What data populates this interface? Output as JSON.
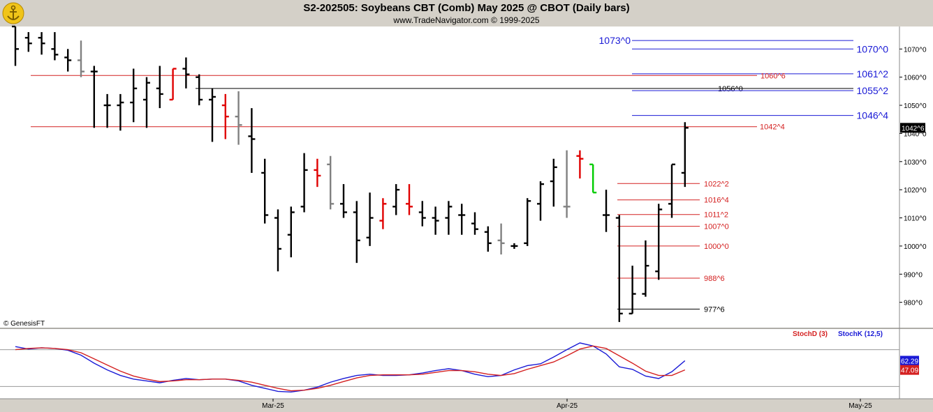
{
  "header": {
    "title": "S2-202505:  Soybeans CBT (Comb) May 2025 @ CBOT  (Daily bars)",
    "subtitle": "www.TradeNavigator.com © 1999-2025"
  },
  "watermark": "© GenesisFT",
  "colors": {
    "bar_default": "#000000",
    "bar_red": "#e00000",
    "bar_gray": "#808080",
    "bar_green": "#00cc00",
    "blue_level": "#1a1ad6",
    "red_level": "#d42020",
    "stoch_d": "#d42020",
    "stoch_k": "#1a1ad6"
  },
  "chart_data": [
    {
      "type": "ohlc",
      "title": "Soybeans CBT (Comb) May 2025 @ CBOT (Daily bars)",
      "y_axis_side": "right",
      "ylim": [
        971,
        1078
      ],
      "y_ticks": [
        "1070^0",
        "1060^0",
        "1050^0",
        "1040^0",
        "1030^0",
        "1020^0",
        "1010^0",
        "1000^0",
        "990^0",
        "980^0"
      ],
      "x_ticks": [
        "Mar-25",
        "Apr-25",
        "May-25"
      ],
      "last_price_label": "1042^6",
      "bars": [
        {
          "h": 1078,
          "l": 1064,
          "o": 1078,
          "c": 1070,
          "color": "black"
        },
        {
          "h": 1076,
          "l": 1069,
          "o": 1074,
          "c": 1072,
          "color": "black"
        },
        {
          "h": 1076,
          "l": 1068,
          "o": 1074,
          "c": 1072,
          "color": "black"
        },
        {
          "h": 1076,
          "l": 1066,
          "o": 1070,
          "c": 1068,
          "color": "black"
        },
        {
          "h": 1070,
          "l": 1062,
          "o": 1067,
          "c": 1066,
          "color": "black"
        },
        {
          "h": 1073,
          "l": 1060,
          "o": 1066,
          "c": 1062,
          "color": "gray"
        },
        {
          "h": 1064,
          "l": 1042,
          "o": 1062,
          "c": 1062,
          "color": "black"
        },
        {
          "h": 1054,
          "l": 1042,
          "o": 1050,
          "c": 1050,
          "color": "black"
        },
        {
          "h": 1054,
          "l": 1041,
          "o": 1050,
          "c": 1051,
          "color": "black"
        },
        {
          "h": 1063,
          "l": 1044,
          "o": 1051,
          "c": 1056,
          "color": "black"
        },
        {
          "h": 1060,
          "l": 1042,
          "o": 1052,
          "c": 1058,
          "color": "black"
        },
        {
          "h": 1064,
          "l": 1049,
          "o": 1056,
          "c": 1054,
          "color": "black"
        },
        {
          "h": 1063,
          "l": 1052,
          "o": 1052,
          "c": 1063,
          "color": "red"
        },
        {
          "h": 1067,
          "l": 1056,
          "o": 1063,
          "c": 1061,
          "color": "black"
        },
        {
          "h": 1061,
          "l": 1050,
          "o": 1060,
          "c": 1052,
          "color": "black"
        },
        {
          "h": 1056,
          "l": 1037,
          "o": 1052,
          "c": 1053,
          "color": "black"
        },
        {
          "h": 1054,
          "l": 1038,
          "o": 1050,
          "c": 1046,
          "color": "red"
        },
        {
          "h": 1055,
          "l": 1036,
          "o": 1046,
          "c": 1043,
          "color": "gray"
        },
        {
          "h": 1049,
          "l": 1026,
          "o": 1039,
          "c": 1038,
          "color": "black"
        },
        {
          "h": 1031,
          "l": 1008,
          "o": 1026,
          "c": 1011,
          "color": "black"
        },
        {
          "h": 1013,
          "l": 991,
          "o": 1010,
          "c": 999,
          "color": "black"
        },
        {
          "h": 1014,
          "l": 996,
          "o": 1004,
          "c": 1012,
          "color": "black"
        },
        {
          "h": 1033,
          "l": 1012,
          "o": 1014,
          "c": 1027,
          "color": "black"
        },
        {
          "h": 1031,
          "l": 1021,
          "o": 1027,
          "c": 1025,
          "color": "red"
        },
        {
          "h": 1032,
          "l": 1013,
          "o": 1029,
          "c": 1015,
          "color": "gray"
        },
        {
          "h": 1022,
          "l": 1010,
          "o": 1015,
          "c": 1012,
          "color": "black"
        },
        {
          "h": 1016,
          "l": 994,
          "o": 1012,
          "c": 1002,
          "color": "black"
        },
        {
          "h": 1019,
          "l": 1000,
          "o": 1003,
          "c": 1010,
          "color": "black"
        },
        {
          "h": 1017,
          "l": 1006,
          "o": 1009,
          "c": 1015,
          "color": "red"
        },
        {
          "h": 1022,
          "l": 1011,
          "o": 1014,
          "c": 1020,
          "color": "black"
        },
        {
          "h": 1022,
          "l": 1011,
          "o": 1015,
          "c": 1014,
          "color": "red"
        },
        {
          "h": 1016,
          "l": 1007,
          "o": 1012,
          "c": 1010,
          "color": "black"
        },
        {
          "h": 1014,
          "l": 1004,
          "o": 1010,
          "c": 1009,
          "color": "black"
        },
        {
          "h": 1016,
          "l": 1004,
          "o": 1010,
          "c": 1014,
          "color": "black"
        },
        {
          "h": 1015,
          "l": 1004,
          "o": 1011,
          "c": 1011,
          "color": "black"
        },
        {
          "h": 1012,
          "l": 1004,
          "o": 1008,
          "c": 1006,
          "color": "black"
        },
        {
          "h": 1007,
          "l": 998,
          "o": 1005,
          "c": 1001,
          "color": "black"
        },
        {
          "h": 1008,
          "l": 997,
          "o": 1002,
          "c": 1001,
          "color": "gray"
        },
        {
          "h": 1001,
          "l": 999,
          "o": 1000,
          "c": 1000,
          "color": "black"
        },
        {
          "h": 1017,
          "l": 1000,
          "o": 1001,
          "c": 1016,
          "color": "black"
        },
        {
          "h": 1023,
          "l": 1009,
          "o": 1015,
          "c": 1022,
          "color": "black"
        },
        {
          "h": 1031,
          "l": 1014,
          "o": 1023,
          "c": 1028,
          "color": "black"
        },
        {
          "h": 1034,
          "l": 1010,
          "o": 1014,
          "c": 1014,
          "color": "gray"
        },
        {
          "h": 1034,
          "l": 1024,
          "o": 1032,
          "c": 1031,
          "color": "red"
        },
        {
          "h": 1029,
          "l": 1019,
          "o": 1029,
          "c": 1019,
          "color": "green"
        },
        {
          "h": 1020,
          "l": 1005,
          "o": 1011,
          "c": 1011,
          "color": "black"
        },
        {
          "h": 1011,
          "l": 973,
          "o": 1010,
          "c": 976,
          "color": "black"
        },
        {
          "h": 993,
          "l": 976,
          "o": 976,
          "c": 983,
          "color": "black"
        },
        {
          "h": 1002,
          "l": 982,
          "o": 983,
          "c": 993,
          "color": "black"
        },
        {
          "h": 1015,
          "l": 988,
          "o": 991,
          "c": 1013,
          "color": "black"
        },
        {
          "h": 1029,
          "l": 1010,
          "o": 1015,
          "c": 1029,
          "color": "black"
        },
        {
          "h": 1044,
          "l": 1021,
          "o": 1026,
          "c": 1042,
          "color": "black"
        }
      ],
      "levels": [
        {
          "label": "1073^0",
          "value": 1073,
          "color": "blue",
          "side": "left"
        },
        {
          "label": "1070^0",
          "value": 1070,
          "color": "blue",
          "side": "right"
        },
        {
          "label": "1061^2",
          "value": 1061.2,
          "color": "blue",
          "side": "right"
        },
        {
          "label": "1060^6",
          "value": 1060.6,
          "color": "red",
          "side": "inline"
        },
        {
          "label": "1056^0",
          "value": 1056,
          "color": "black",
          "side": "inline"
        },
        {
          "label": "1055^2",
          "value": 1055.2,
          "color": "blue",
          "side": "right"
        },
        {
          "label": "1046^4",
          "value": 1046.4,
          "color": "blue",
          "side": "right"
        },
        {
          "label": "1042^4",
          "value": 1042.4,
          "color": "red",
          "side": "inline"
        },
        {
          "label": "1022^2",
          "value": 1022.2,
          "color": "red",
          "side": "inline"
        },
        {
          "label": "1016^4",
          "value": 1016.4,
          "color": "red",
          "side": "inline"
        },
        {
          "label": "1011^2",
          "value": 1011.2,
          "color": "red",
          "side": "inline"
        },
        {
          "label": "1007^0",
          "value": 1007,
          "color": "red",
          "side": "inline"
        },
        {
          "label": "1000^0",
          "value": 1000,
          "color": "red",
          "side": "inline"
        },
        {
          "label": "988^6",
          "value": 988.6,
          "color": "red",
          "side": "inline"
        },
        {
          "label": "977^6",
          "value": 977.6,
          "color": "black",
          "side": "inline"
        }
      ]
    },
    {
      "type": "line",
      "legend": [
        "StochD (3)",
        "StochK (12,5)"
      ],
      "ylim": [
        0,
        100
      ],
      "reference_lines": [
        80,
        20
      ],
      "last_values": {
        "StochK (12,5)": "62.29",
        "StochD (3)": "47.09"
      },
      "series": [
        {
          "name": "StochK (12,5)",
          "values": [
            85,
            81,
            83,
            82,
            79,
            71,
            58,
            47,
            38,
            32,
            29,
            26,
            30,
            33,
            31,
            32,
            32,
            29,
            22,
            17,
            12,
            11,
            14,
            19,
            27,
            33,
            38,
            40,
            38,
            38,
            39,
            42,
            46,
            49,
            46,
            40,
            36,
            38,
            47,
            54,
            57,
            68,
            80,
            91,
            86,
            73,
            52,
            48,
            37,
            33,
            44,
            62
          ]
        },
        {
          "name": "StochD (3)",
          "values": [
            80,
            82,
            83,
            82,
            80,
            75,
            65,
            55,
            45,
            37,
            32,
            28,
            29,
            31,
            31,
            32,
            32,
            30,
            27,
            22,
            17,
            13,
            14,
            17,
            22,
            28,
            34,
            38,
            39,
            39,
            39,
            40,
            43,
            46,
            46,
            44,
            40,
            38,
            41,
            48,
            54,
            60,
            70,
            81,
            86,
            82,
            70,
            58,
            45,
            38,
            38,
            47
          ]
        }
      ]
    }
  ]
}
